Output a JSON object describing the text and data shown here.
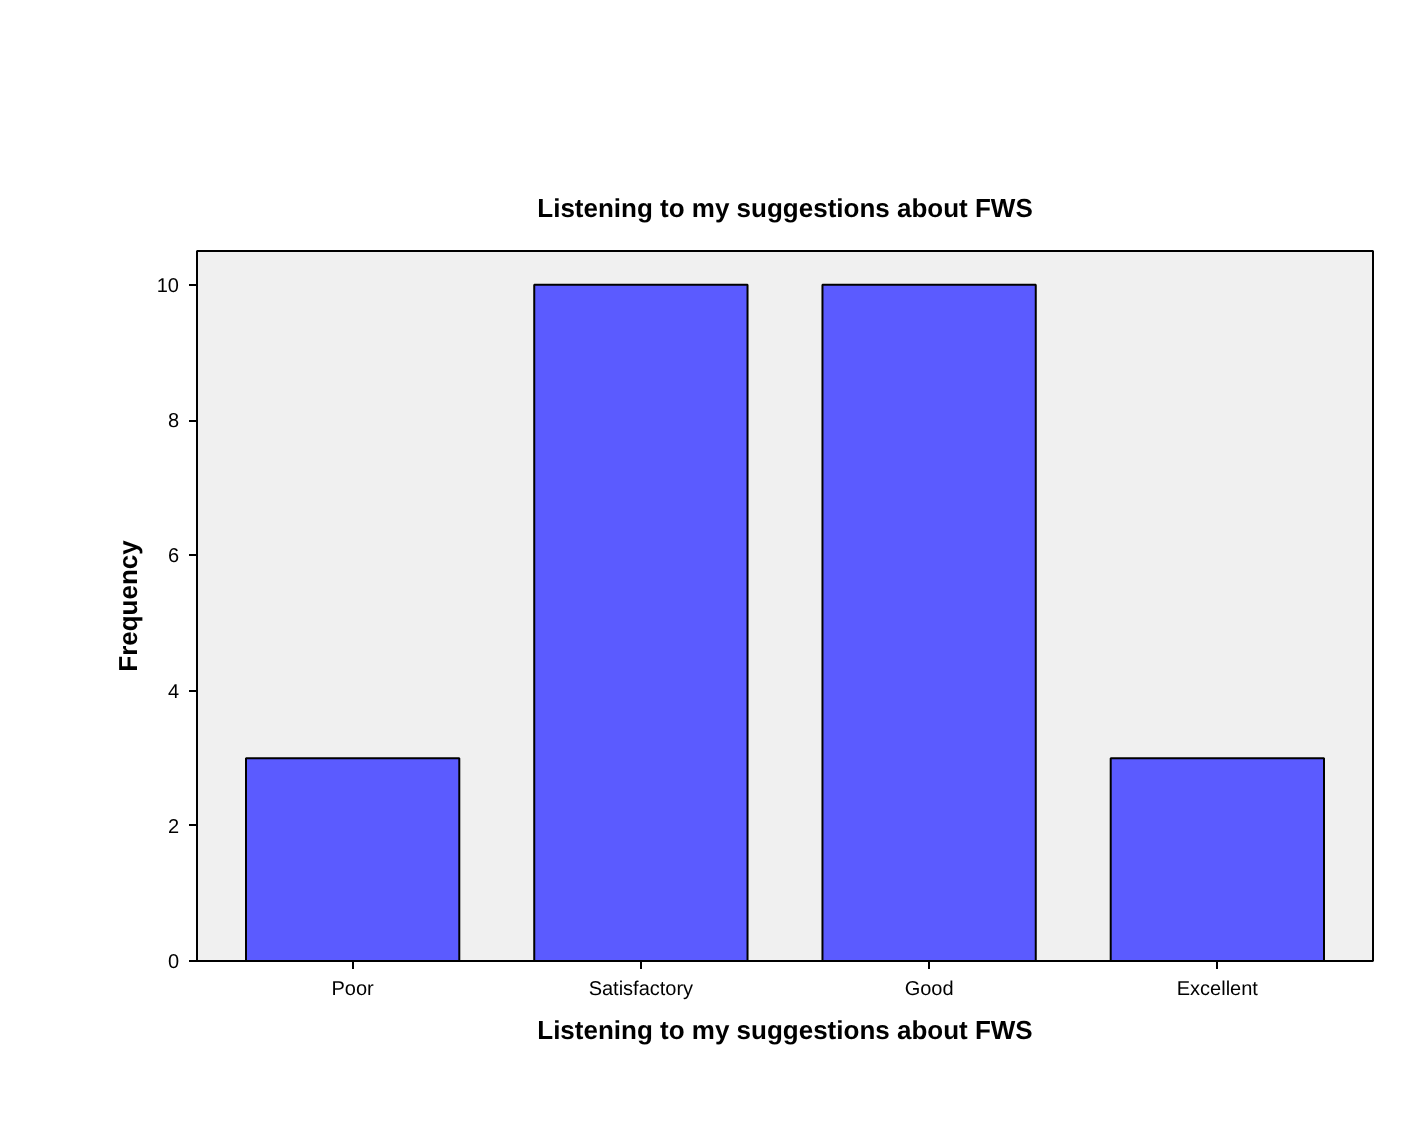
{
  "chart_data": {
    "type": "bar",
    "title": "Listening to my suggestions about FWS",
    "xlabel": "Listening to my suggestions about FWS",
    "ylabel": "Frequency",
    "categories": [
      "Poor",
      "Satisfactory",
      "Good",
      "Excellent"
    ],
    "values": [
      3,
      10,
      10,
      3
    ],
    "color": "#5b5bff",
    "ylim": [
      0,
      10.5
    ],
    "yticks": [
      0,
      2,
      4,
      6,
      8,
      10
    ],
    "grid": false
  }
}
